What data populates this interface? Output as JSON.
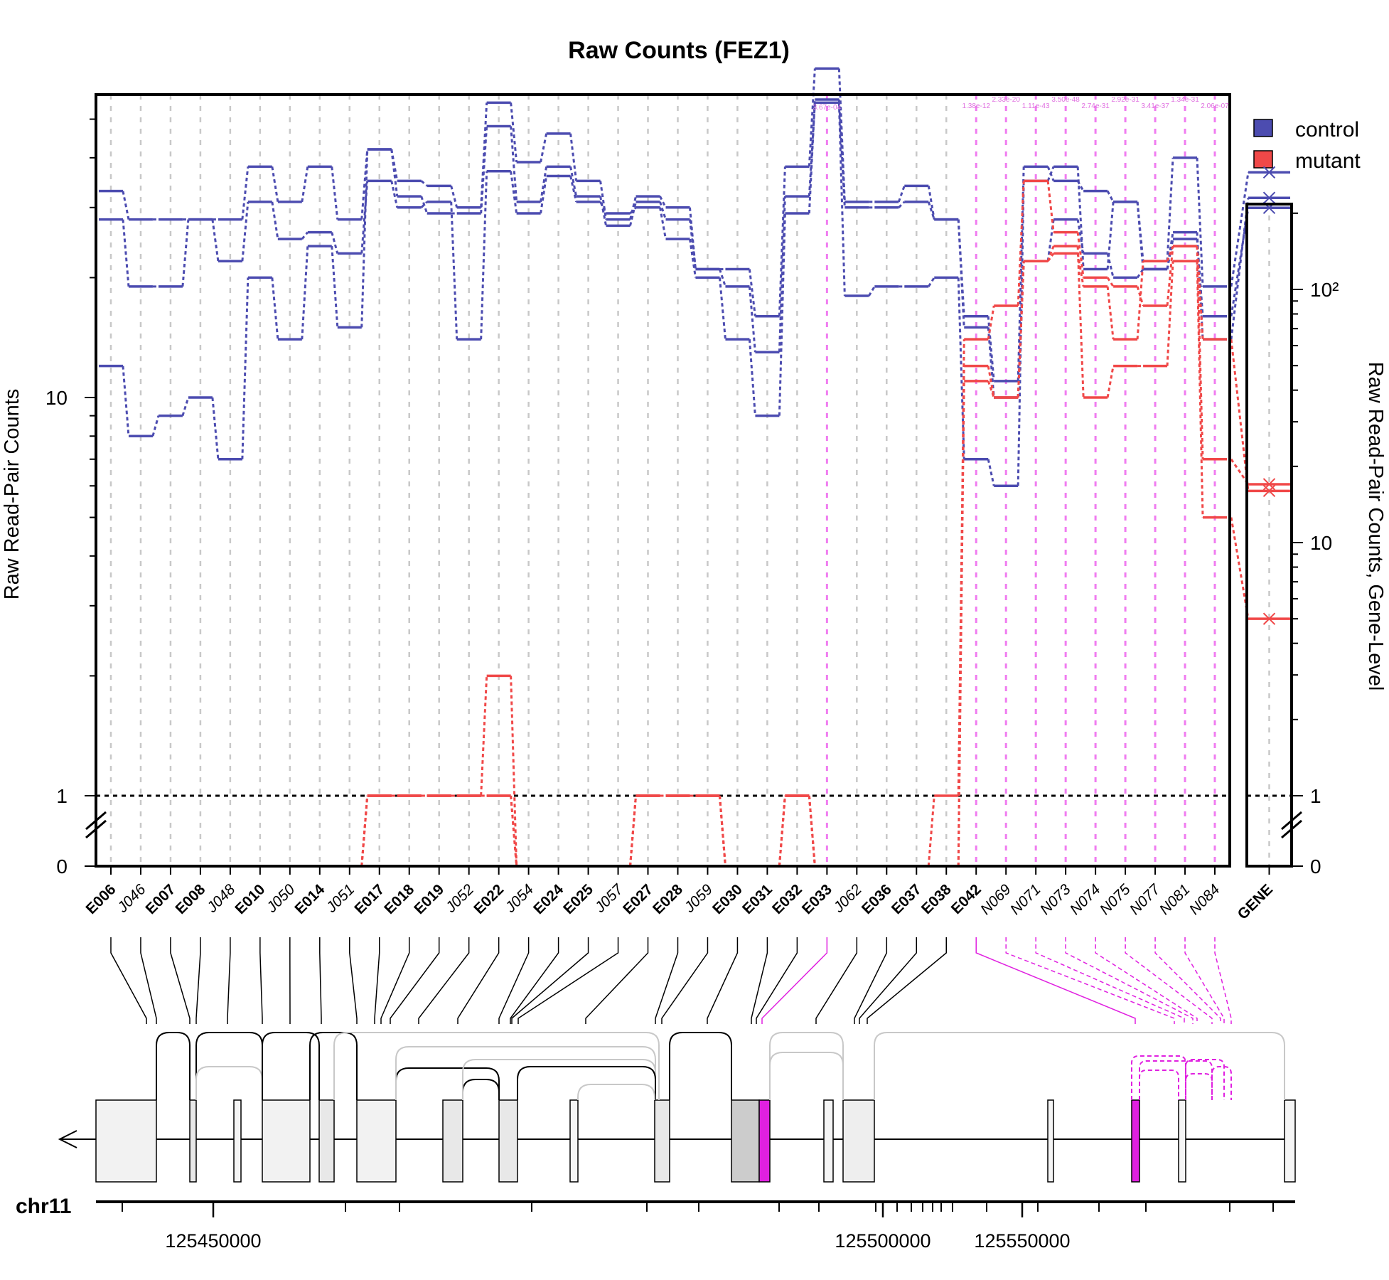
{
  "chart_data": {
    "type": "line",
    "title": "Raw Counts (FEZ1)",
    "ylabel": "Raw Read-Pair Counts",
    "ylabel_right": "Raw Read-Pair Counts, Gene-Level",
    "y_scale": "log with zero break",
    "y_ticks": [
      "0",
      "1",
      "10"
    ],
    "y_ticks_right": [
      "0",
      "1",
      "10",
      "10²"
    ],
    "grid": true,
    "legend_position": "top-right",
    "legend": [
      {
        "name": "control",
        "color": "#4c4cb0"
      },
      {
        "name": "mutant",
        "color": "#f04848"
      }
    ],
    "features": [
      {
        "label": "E006",
        "kind": "exon"
      },
      {
        "label": "J046",
        "kind": "junction"
      },
      {
        "label": "E007",
        "kind": "exon"
      },
      {
        "label": "E008",
        "kind": "exon"
      },
      {
        "label": "J048",
        "kind": "junction"
      },
      {
        "label": "E010",
        "kind": "exon"
      },
      {
        "label": "J050",
        "kind": "junction"
      },
      {
        "label": "E014",
        "kind": "exon"
      },
      {
        "label": "J051",
        "kind": "junction"
      },
      {
        "label": "E017",
        "kind": "exon"
      },
      {
        "label": "E018",
        "kind": "exon"
      },
      {
        "label": "E019",
        "kind": "exon"
      },
      {
        "label": "J052",
        "kind": "junction"
      },
      {
        "label": "E022",
        "kind": "exon"
      },
      {
        "label": "J054",
        "kind": "junction"
      },
      {
        "label": "E024",
        "kind": "exon"
      },
      {
        "label": "E025",
        "kind": "exon"
      },
      {
        "label": "J057",
        "kind": "junction"
      },
      {
        "label": "E027",
        "kind": "exon"
      },
      {
        "label": "E028",
        "kind": "exon"
      },
      {
        "label": "J059",
        "kind": "junction"
      },
      {
        "label": "E030",
        "kind": "exon"
      },
      {
        "label": "E031",
        "kind": "exon"
      },
      {
        "label": "E032",
        "kind": "exon"
      },
      {
        "label": "E033",
        "kind": "exon"
      },
      {
        "label": "J062",
        "kind": "junction"
      },
      {
        "label": "E036",
        "kind": "exon"
      },
      {
        "label": "E037",
        "kind": "exon"
      },
      {
        "label": "E038",
        "kind": "exon"
      },
      {
        "label": "E042",
        "kind": "exon"
      },
      {
        "label": "N069",
        "kind": "novel"
      },
      {
        "label": "N071",
        "kind": "novel"
      },
      {
        "label": "N073",
        "kind": "novel"
      },
      {
        "label": "N074",
        "kind": "novel"
      },
      {
        "label": "N075",
        "kind": "novel"
      },
      {
        "label": "N077",
        "kind": "novel"
      },
      {
        "label": "N081",
        "kind": "novel"
      },
      {
        "label": "N084",
        "kind": "novel"
      }
    ],
    "gene_label": "GENE",
    "significant_features": [
      "E033",
      "E042",
      "N069",
      "N071",
      "N073",
      "N074",
      "N075",
      "N077",
      "N081",
      "N084"
    ],
    "pvalue_labels": [
      {
        "feature": "E033",
        "text": "3.67e-04"
      },
      {
        "feature": "E042",
        "text": "1.38e-12"
      },
      {
        "feature": "N069",
        "text": "2.33e-20"
      },
      {
        "feature": "N071",
        "text": "1.11e-43"
      },
      {
        "feature": "N073",
        "text": "3.50e-48"
      },
      {
        "feature": "N074",
        "text": "2.74e-31"
      },
      {
        "feature": "N075",
        "text": "2.92e-31"
      },
      {
        "feature": "N077",
        "text": "3.41e-37"
      },
      {
        "feature": "N081",
        "text": "1.34e-31"
      },
      {
        "feature": "N084",
        "text": "2.06e-07"
      }
    ],
    "series": [
      {
        "name": "control",
        "values": [
          33,
          28,
          28,
          28,
          28,
          38,
          31,
          38,
          28,
          42,
          35,
          34,
          30,
          55,
          39,
          46,
          35,
          28,
          32,
          30,
          21,
          21,
          16,
          38,
          67,
          31,
          31,
          34,
          28,
          16,
          11,
          38,
          35,
          33,
          31,
          22,
          40,
          19
        ],
        "gene": 290
      },
      {
        "name": "control",
        "values": [
          12,
          8,
          9,
          10,
          7,
          20,
          14,
          24,
          15,
          42,
          32,
          29,
          29,
          48,
          31,
          38,
          32,
          27,
          31,
          28,
          21,
          19,
          13,
          32,
          55,
          18,
          19,
          19,
          20,
          7,
          6,
          35,
          38,
          21,
          31,
          21,
          25,
          16
        ],
        "gene": 210
      },
      {
        "name": "control",
        "values": [
          28,
          19,
          19,
          28,
          22,
          31,
          25,
          26,
          23,
          35,
          30,
          31,
          14,
          37,
          29,
          36,
          31,
          29,
          30,
          25,
          20,
          14,
          9,
          29,
          56,
          30,
          30,
          31,
          28,
          15,
          10,
          22,
          28,
          23,
          20,
          21,
          26,
          14
        ],
        "gene": 230
      },
      {
        "name": "mutant",
        "values": [
          0,
          0,
          0,
          0,
          0,
          0,
          0,
          0,
          0,
          1,
          1,
          1,
          1,
          2,
          0,
          0,
          0,
          0,
          1,
          1,
          1,
          0,
          0,
          1,
          0,
          0,
          0,
          0,
          0,
          14,
          17,
          35,
          26,
          20,
          19,
          17,
          24,
          7
        ],
        "gene": 17
      },
      {
        "name": "mutant",
        "values": [
          0,
          0,
          0,
          0,
          0,
          0,
          0,
          0,
          0,
          1,
          1,
          1,
          1,
          1,
          0,
          0,
          0,
          0,
          1,
          1,
          1,
          0,
          0,
          1,
          0,
          0,
          0,
          0,
          1,
          12,
          10,
          22,
          24,
          10,
          12,
          12,
          22,
          5
        ],
        "gene": 5
      },
      {
        "name": "mutant",
        "values": [
          0,
          0,
          0,
          0,
          0,
          0,
          0,
          0,
          0,
          1,
          1,
          1,
          1,
          1,
          0,
          0,
          0,
          0,
          1,
          1,
          1,
          0,
          0,
          1,
          0,
          0,
          0,
          0,
          0,
          11,
          10,
          22,
          23,
          19,
          14,
          22,
          24,
          14
        ],
        "gene": 16
      }
    ],
    "gene_track": {
      "chromosome": "chr11",
      "coordinate_ticks": [
        "125450000",
        "125500000",
        "125550000"
      ]
    }
  }
}
